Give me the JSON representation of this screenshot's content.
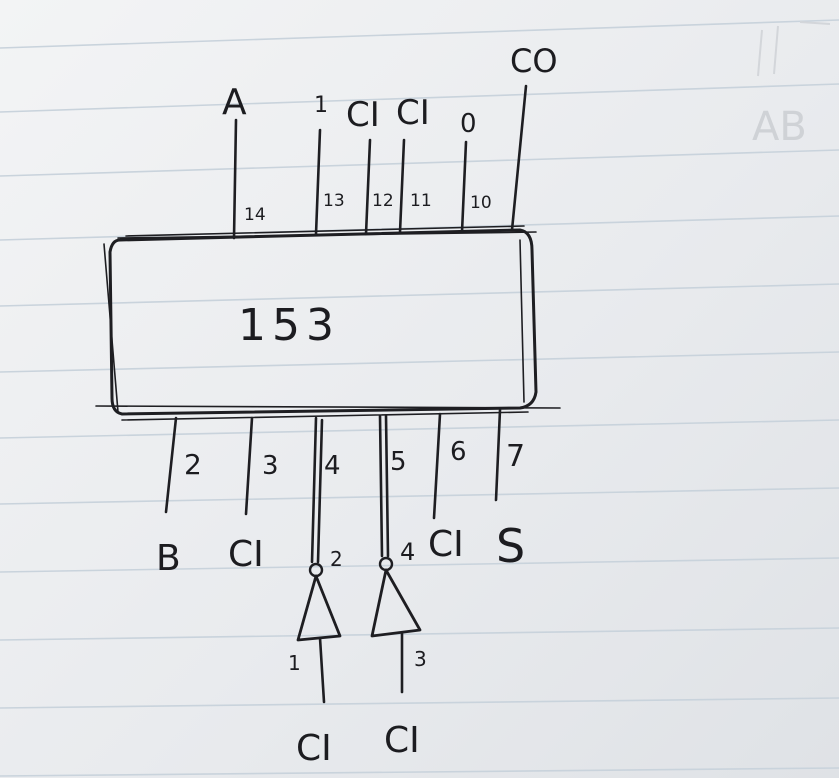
{
  "chip": {
    "label": "153",
    "top_pins": [
      {
        "pin": "14",
        "signal": "A"
      },
      {
        "pin": "13",
        "signal": "1"
      },
      {
        "pin": "12",
        "signal": "CI"
      },
      {
        "pin": "11",
        "signal": "CI"
      },
      {
        "pin": "10",
        "signal": "0"
      },
      {
        "pin": "",
        "signal": "CO"
      }
    ],
    "bottom_pins": [
      {
        "pin": "2",
        "signal": "B"
      },
      {
        "pin": "3",
        "signal": "CI"
      },
      {
        "pin": "4",
        "signal": ""
      },
      {
        "pin": "5",
        "signal": ""
      },
      {
        "pin": "6",
        "signal": "CI"
      },
      {
        "pin": "7",
        "signal": "S"
      }
    ]
  },
  "inverters": [
    {
      "input_pin": "1",
      "output_pin": "2",
      "input_signal": "CI"
    },
    {
      "input_pin": "3",
      "output_pin": "4",
      "input_signal": "CI"
    }
  ],
  "background_marks": {
    "text": "AB"
  }
}
